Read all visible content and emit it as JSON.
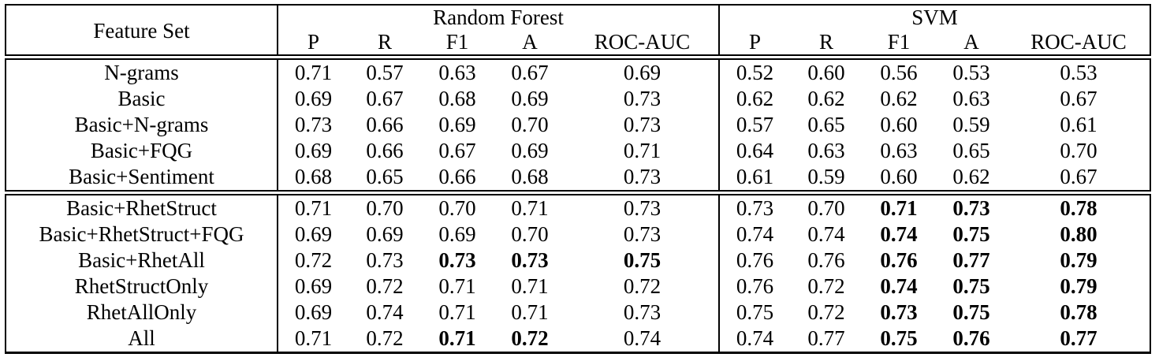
{
  "table": {
    "corner_label": "Feature Set",
    "groups": [
      {
        "label": "Random Forest"
      },
      {
        "label": "SVM"
      }
    ],
    "metric_headers": [
      "P",
      "R",
      "F1",
      "A",
      "ROC-AUC"
    ],
    "text_color": "#000000",
    "line_color": "#000000",
    "sections": [
      {
        "rows": [
          {
            "feature": "N-grams",
            "rf": [
              "0.71",
              "0.57",
              "0.63",
              "0.67",
              "0.69"
            ],
            "rf_bold": [],
            "svm": [
              "0.52",
              "0.60",
              "0.56",
              "0.53",
              "0.53"
            ],
            "svm_bold": []
          },
          {
            "feature": "Basic",
            "rf": [
              "0.69",
              "0.67",
              "0.68",
              "0.69",
              "0.73"
            ],
            "rf_bold": [],
            "svm": [
              "0.62",
              "0.62",
              "0.62",
              "0.63",
              "0.67"
            ],
            "svm_bold": []
          },
          {
            "feature": "Basic+N-grams",
            "rf": [
              "0.73",
              "0.66",
              "0.69",
              "0.70",
              "0.73"
            ],
            "rf_bold": [],
            "svm": [
              "0.57",
              "0.65",
              "0.60",
              "0.59",
              "0.61"
            ],
            "svm_bold": []
          },
          {
            "feature": "Basic+FQG",
            "rf": [
              "0.69",
              "0.66",
              "0.67",
              "0.69",
              "0.71"
            ],
            "rf_bold": [],
            "svm": [
              "0.64",
              "0.63",
              "0.63",
              "0.65",
              "0.70"
            ],
            "svm_bold": []
          },
          {
            "feature": "Basic+Sentiment",
            "rf": [
              "0.68",
              "0.65",
              "0.66",
              "0.68",
              "0.73"
            ],
            "rf_bold": [],
            "svm": [
              "0.61",
              "0.59",
              "0.60",
              "0.62",
              "0.67"
            ],
            "svm_bold": []
          }
        ]
      },
      {
        "rows": [
          {
            "feature": "Basic+RhetStruct",
            "rf": [
              "0.71",
              "0.70",
              "0.70",
              "0.71",
              "0.73"
            ],
            "rf_bold": [],
            "svm": [
              "0.73",
              "0.70",
              "0.71",
              "0.73",
              "0.78"
            ],
            "svm_bold": [
              2,
              3,
              4
            ]
          },
          {
            "feature": "Basic+RhetStruct+FQG",
            "rf": [
              "0.69",
              "0.69",
              "0.69",
              "0.70",
              "0.73"
            ],
            "rf_bold": [],
            "svm": [
              "0.74",
              "0.74",
              "0.74",
              "0.75",
              "0.80"
            ],
            "svm_bold": [
              2,
              3,
              4
            ]
          },
          {
            "feature": "Basic+RhetAll",
            "rf": [
              "0.72",
              "0.73",
              "0.73",
              "0.73",
              "0.75"
            ],
            "rf_bold": [
              2,
              3,
              4
            ],
            "svm": [
              "0.76",
              "0.76",
              "0.76",
              "0.77",
              "0.79"
            ],
            "svm_bold": [
              2,
              3,
              4
            ]
          },
          {
            "feature": "RhetStructOnly",
            "rf": [
              "0.69",
              "0.72",
              "0.71",
              "0.71",
              "0.72"
            ],
            "rf_bold": [],
            "svm": [
              "0.76",
              "0.72",
              "0.74",
              "0.75",
              "0.79"
            ],
            "svm_bold": [
              2,
              3,
              4
            ]
          },
          {
            "feature": "RhetAllOnly",
            "rf": [
              "0.69",
              "0.74",
              "0.71",
              "0.71",
              "0.73"
            ],
            "rf_bold": [],
            "svm": [
              "0.75",
              "0.72",
              "0.73",
              "0.75",
              "0.78"
            ],
            "svm_bold": [
              2,
              3,
              4
            ]
          },
          {
            "feature": "All",
            "rf": [
              "0.71",
              "0.72",
              "0.71",
              "0.72",
              "0.74"
            ],
            "rf_bold": [
              2,
              3
            ],
            "svm": [
              "0.74",
              "0.77",
              "0.75",
              "0.76",
              "0.77"
            ],
            "svm_bold": [
              2,
              3,
              4
            ]
          }
        ]
      }
    ]
  }
}
